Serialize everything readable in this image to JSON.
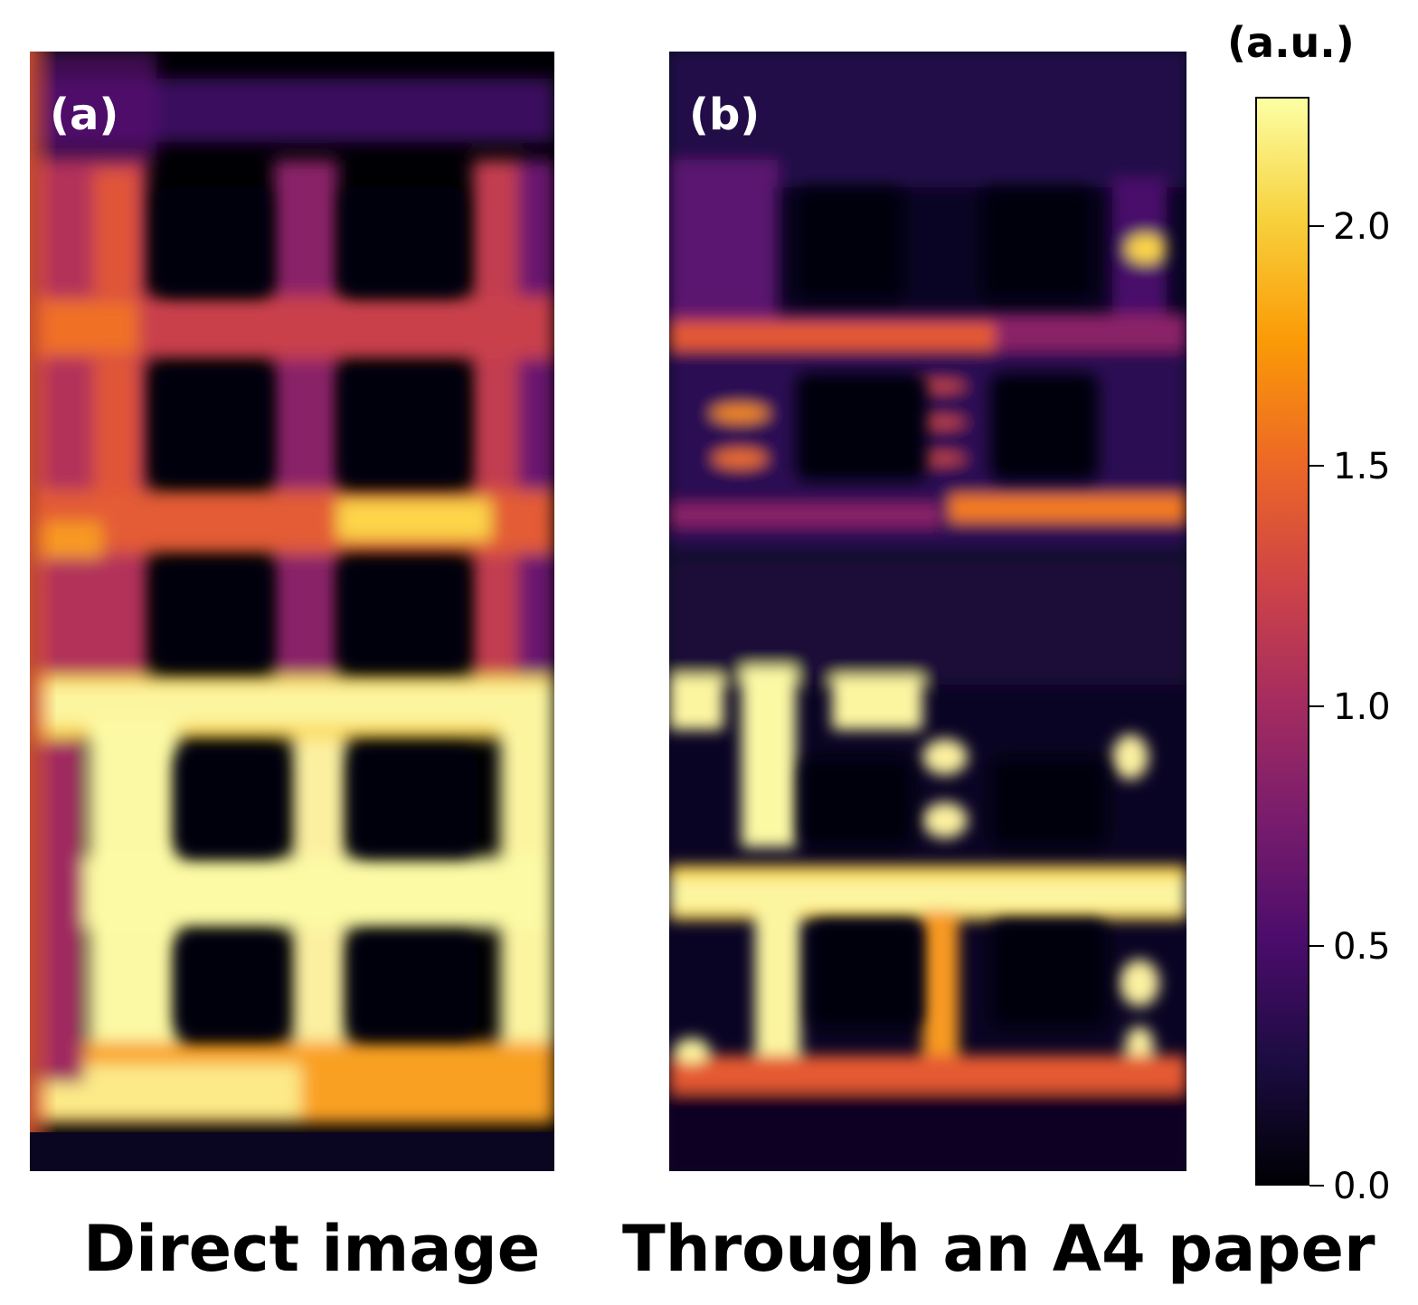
{
  "panels": [
    {
      "id": "a",
      "label": "(a)",
      "caption": "Direct image"
    },
    {
      "id": "b",
      "label": "(b)",
      "caption": "Through an A4 paper"
    }
  ],
  "colorbar": {
    "unit": "(a.u.)",
    "min": 0.0,
    "max": 2.27,
    "ticks": [
      "0.0",
      "0.5",
      "1.0",
      "1.5",
      "2.0"
    ],
    "tick_values": [
      0.0,
      0.5,
      1.0,
      1.5,
      2.0
    ],
    "colormap": "inferno",
    "stops": [
      "#000004",
      "#1b0c41",
      "#4a0c6b",
      "#781c6d",
      "#a52c60",
      "#cf4446",
      "#ed6925",
      "#fb9b06",
      "#f7d13d",
      "#fcffa4"
    ]
  }
}
